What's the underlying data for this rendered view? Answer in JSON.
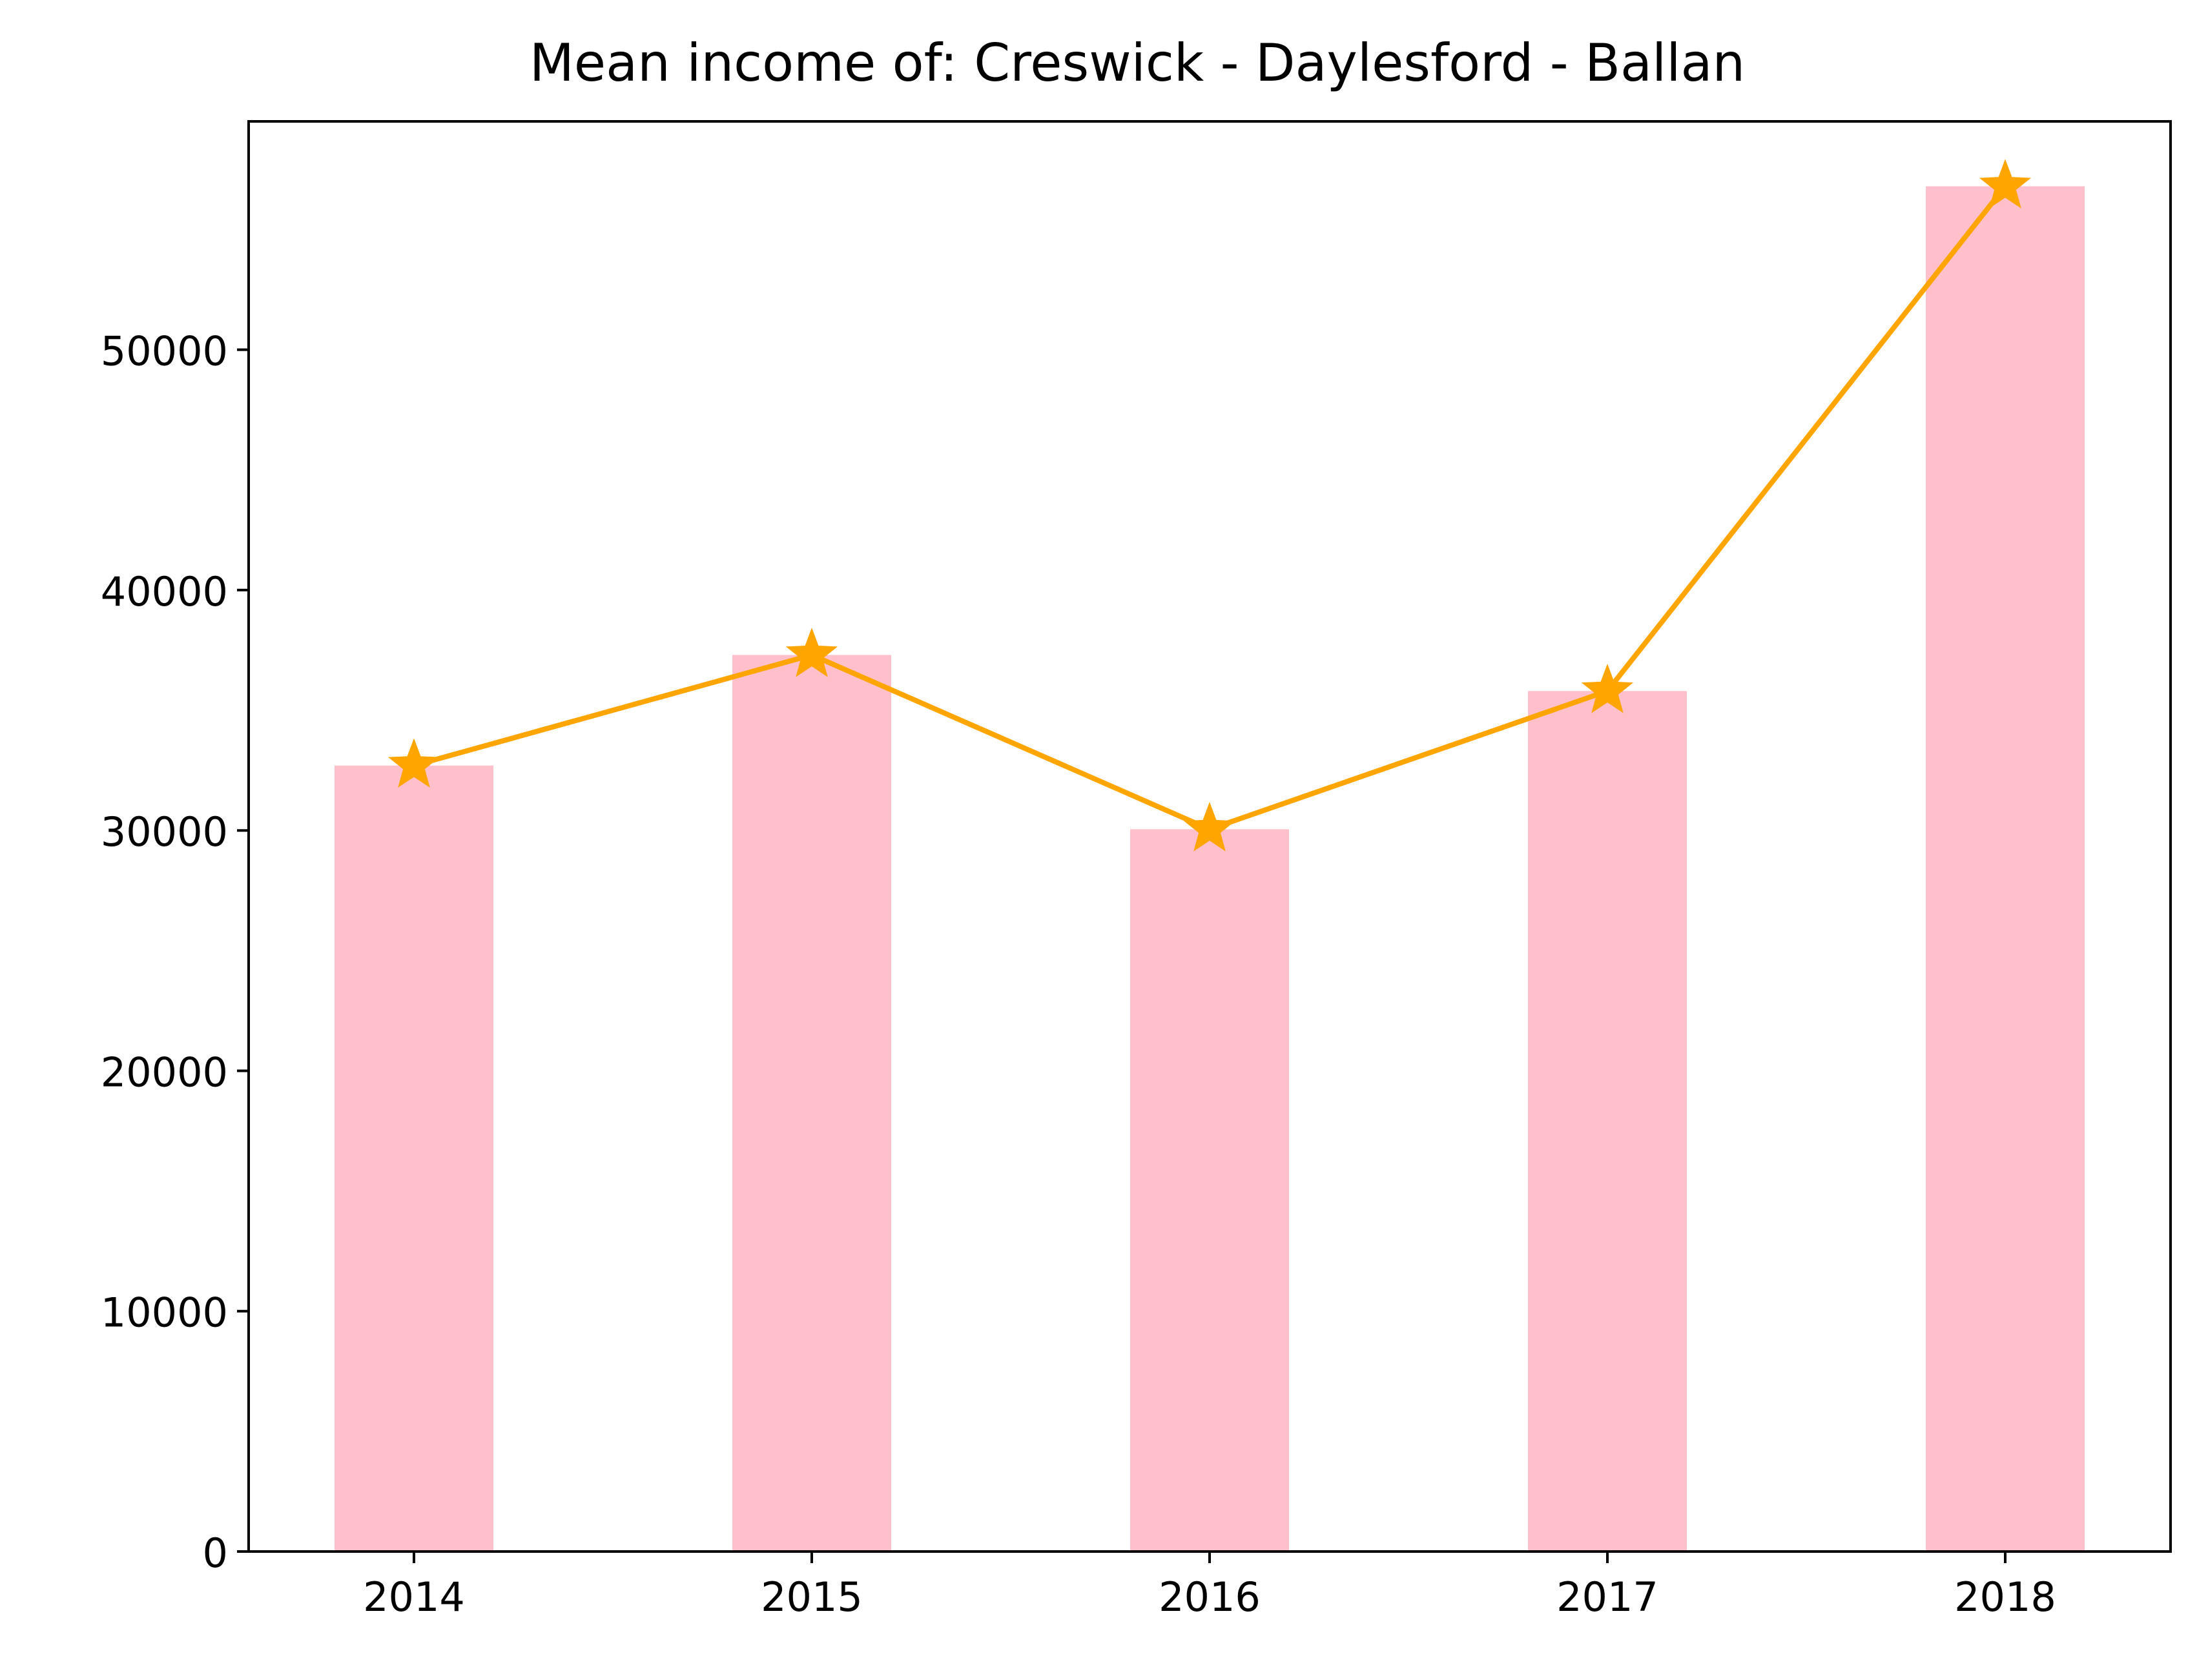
{
  "chart_data": {
    "type": "bar",
    "title": "Mean income of: Creswick - Daylesford - Ballan",
    "xlabel": "",
    "ylabel": "",
    "categories": [
      "2014",
      "2015",
      "2016",
      "2017",
      "2018"
    ],
    "series": [
      {
        "kind": "bar",
        "color": "#ffc0cb",
        "values": [
          32700,
          37300,
          30050,
          35800,
          56800
        ]
      },
      {
        "kind": "line",
        "marker": "star",
        "color": "#ffa500",
        "values": [
          32700,
          37300,
          30050,
          35800,
          56800
        ]
      }
    ],
    "ylim": [
      0,
      59500
    ],
    "yticks": [
      0,
      10000,
      20000,
      30000,
      40000,
      50000
    ],
    "yticklabels": [
      "0",
      "10000",
      "20000",
      "30000",
      "40000",
      "50000"
    ],
    "grid": false
  }
}
